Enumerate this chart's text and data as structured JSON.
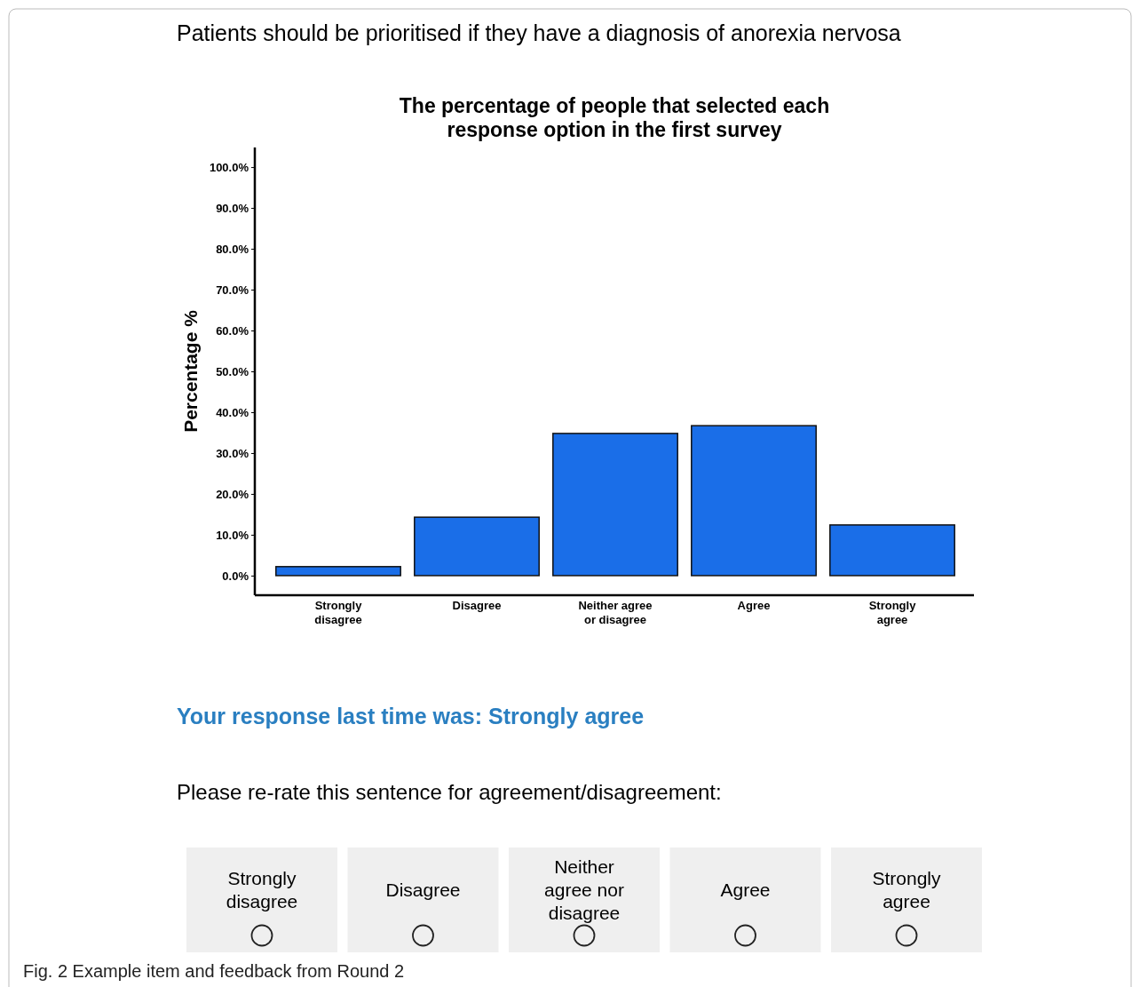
{
  "chart_data": {
    "type": "bar",
    "title": "The percentage of people that selected each\nresponse option in the first survey",
    "ylabel": "Percentage %",
    "categories": [
      "Strongly disagree",
      "Disagree",
      "Neither agree or disagree",
      "Agree",
      "Strongly agree"
    ],
    "values": [
      2.2,
      14.3,
      34.8,
      36.7,
      12.4
    ],
    "color": "#1a6ee8",
    "ylim": [
      -4.8,
      104.8
    ],
    "yticks": [
      {
        "value": 0,
        "label": "0.0%"
      },
      {
        "value": 10,
        "label": "10.0%"
      },
      {
        "value": 20,
        "label": "20.0%"
      },
      {
        "value": 30,
        "label": "30.0%"
      },
      {
        "value": 40,
        "label": "40.0%"
      },
      {
        "value": 50,
        "label": "50.0%"
      },
      {
        "value": 60,
        "label": "60.0%"
      },
      {
        "value": 70,
        "label": "70.0%"
      },
      {
        "value": 80,
        "label": "80.0%"
      },
      {
        "value": 90,
        "label": "90.0%"
      },
      {
        "value": 100,
        "label": "100.0%"
      }
    ],
    "annotations": [
      "Patients should be prioritised if they have a diagnosis of anorexia nervosa",
      "Your response last time was: Strongly agree",
      "Please re-rate this sentence for agreement/disagreement:",
      "Strongly disagree",
      "Disagree",
      "Neither agree nor disagree",
      "Agree",
      "Strongly agree",
      "Fig. 2 Example item and feedback from Round 2"
    ]
  }
}
